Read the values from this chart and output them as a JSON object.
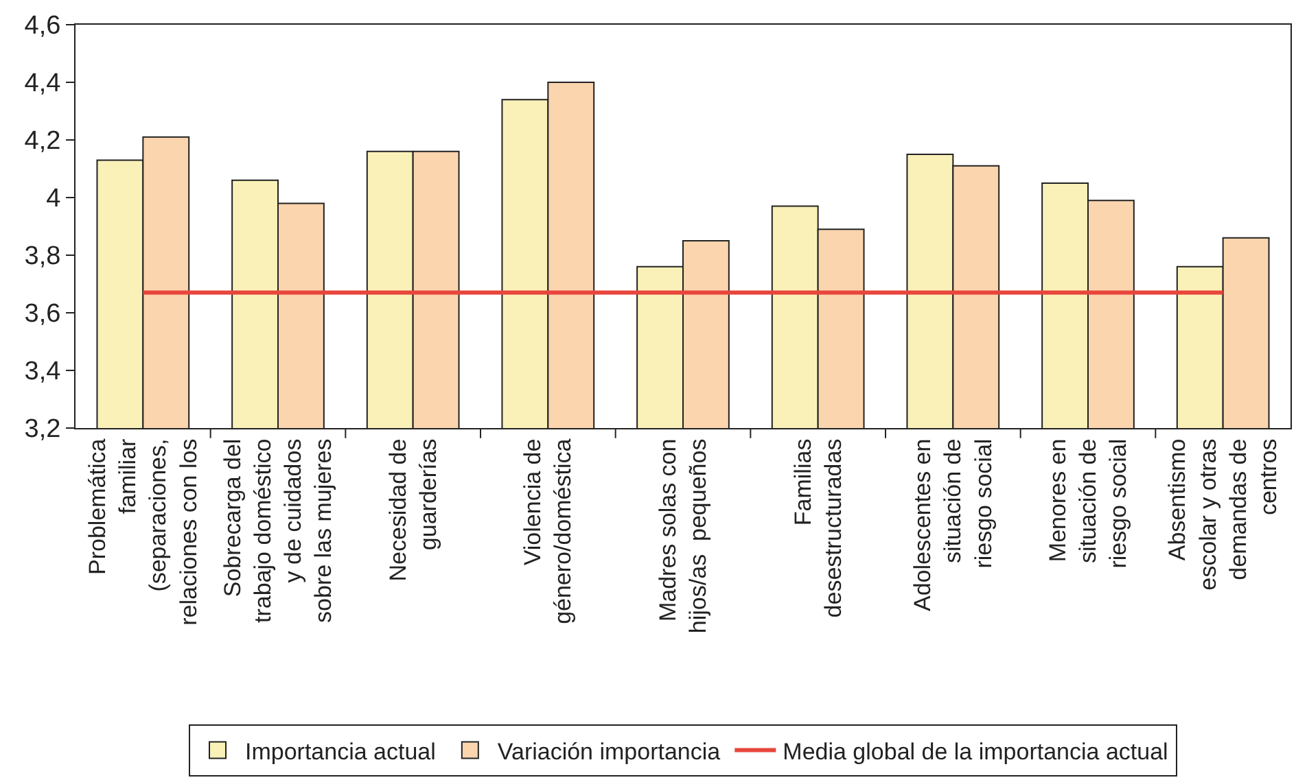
{
  "chart_data": {
    "type": "bar",
    "categories": [
      "Problemática\nfamiliar\n(separaciones,\nrelaciones con los",
      "Sobrecarga del\ntrabajo doméstico\ny de cuidados\nsobre las mujeres",
      "Necesidad de\nguarderías",
      "Violencia de\ngénero/doméstica",
      "Madres solas con\nhijos/as  pequeños",
      "Familias\ndesestructuradas",
      "Adolescentes en\nsituación de\nriesgo social",
      "Menores en\nsituación de\nriesgo social",
      "Absentismo\nescolar y otras\ndemandas de\ncentros"
    ],
    "series": [
      {
        "name": "Importancia actual",
        "color": "#f9f1b8",
        "values": [
          4.13,
          4.06,
          4.16,
          4.34,
          3.76,
          3.97,
          4.15,
          4.05,
          3.76
        ]
      },
      {
        "name": "Variación importancia",
        "color": "#fad5ae",
        "values": [
          4.21,
          3.98,
          4.16,
          4.4,
          3.85,
          3.89,
          4.11,
          3.99,
          3.86
        ]
      },
      {
        "name": "Media global de la importancia actual",
        "type": "line",
        "color": "#e8453c",
        "values": [
          3.67,
          3.67,
          3.67,
          3.67,
          3.67,
          3.67,
          3.67,
          3.67,
          3.67
        ]
      }
    ],
    "ylim": [
      3.2,
      4.6
    ],
    "yticks": [
      {
        "value": 3.2,
        "label": "3,2"
      },
      {
        "value": 3.4,
        "label": "3,4"
      },
      {
        "value": 3.6,
        "label": "3,6"
      },
      {
        "value": 3.8,
        "label": "3,8"
      },
      4,
      {
        "value": 4.2,
        "label": "4,2"
      },
      {
        "value": 4.4,
        "label": "4,4"
      },
      {
        "value": 4.6,
        "label": "4,6"
      }
    ],
    "legend": "bottom"
  }
}
